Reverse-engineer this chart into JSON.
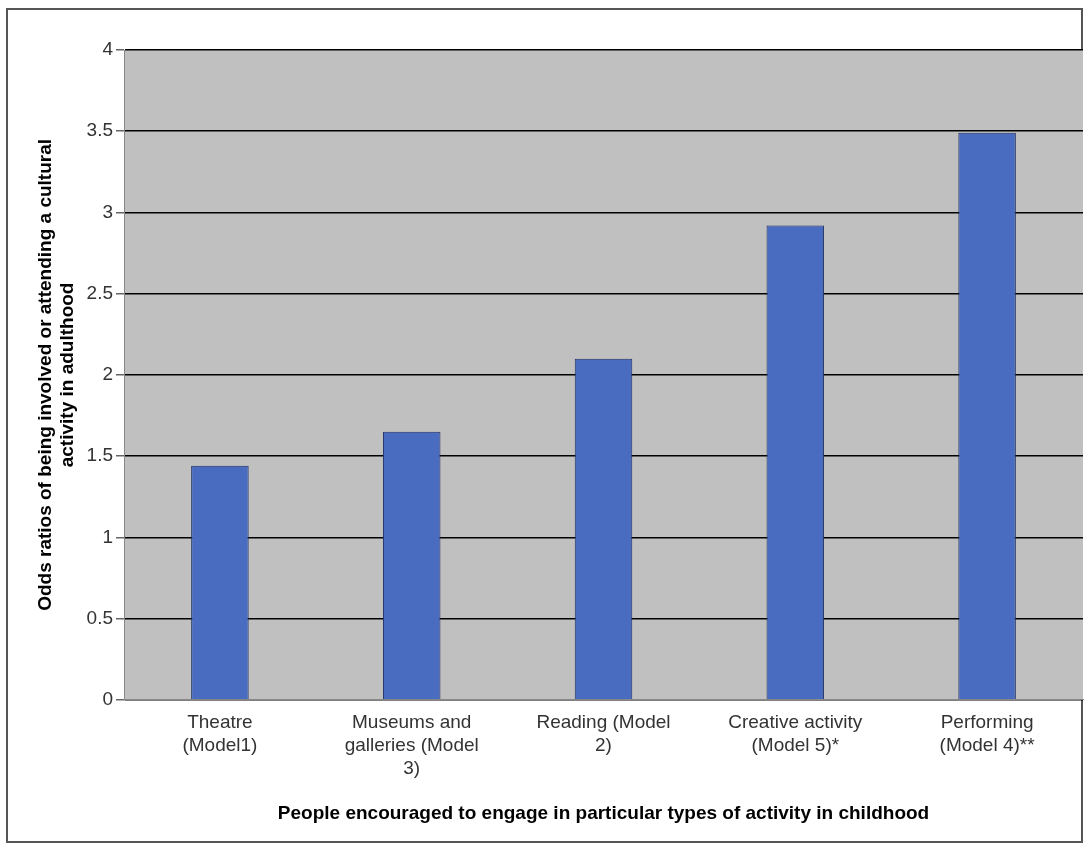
{
  "chart_data": {
    "type": "bar",
    "categories": [
      "Theatre (Model1)",
      "Museums and galleries (Model 3)",
      "Reading (Model 2)",
      "Creative activity (Model 5)*",
      "Performing (Model 4)**"
    ],
    "values": [
      1.44,
      1.65,
      2.1,
      2.92,
      3.49
    ],
    "color": "#4a6cc0",
    "ylim": [
      0,
      4
    ],
    "yticks": [
      0,
      0.5,
      1,
      1.5,
      2,
      2.5,
      3,
      3.5,
      4
    ],
    "grid": "y",
    "legend": false,
    "xlabel": "People encouraged to engage in particular types of activity in childhood",
    "ylabel": "Odds ratios of being involved or attending a cultural activity in adulthood"
  }
}
